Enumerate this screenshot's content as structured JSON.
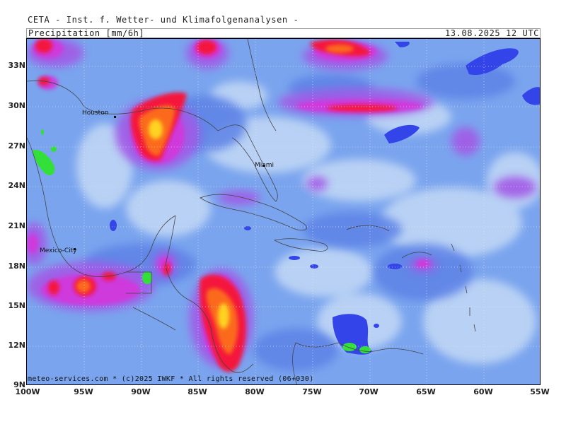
{
  "header": {
    "title": "CETA - Inst. f. Wetter- und Klimafolgenanalysen -",
    "parameter": "Precipitation [mm/6h]",
    "valid_time": "13.08.2025 12 UTC"
  },
  "footer": {
    "copyright": "meteo-services.com * (c)2025 IWKF * All rights reserved (06+030)"
  },
  "axes": {
    "lat_labels": [
      "33N",
      "30N",
      "27N",
      "24N",
      "21N",
      "18N",
      "15N",
      "12N",
      "9N"
    ],
    "lon_labels": [
      "100W",
      "95W",
      "90W",
      "85W",
      "80W",
      "75W",
      "70W",
      "65W",
      "60W",
      "55W"
    ]
  },
  "cities": [
    {
      "name": "Houston"
    },
    {
      "name": "Miami"
    },
    {
      "name": "Mexico-City"
    }
  ],
  "colors": {
    "background": "#7aa4ee",
    "light": "#bfd6f5",
    "medium": "#5d82e6",
    "blue_core": "#3344e8",
    "violet": "#a25ae6",
    "magenta": "#d238dc",
    "red": "#f4123e",
    "orange": "#fb6a1c",
    "yellow": "#ffd320",
    "green": "#33e03a"
  }
}
